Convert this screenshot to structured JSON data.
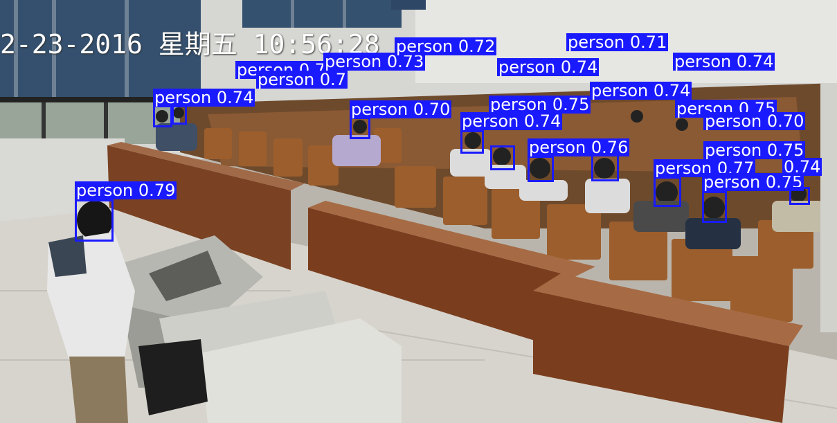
{
  "overlay": {
    "timestamp": "2-23-2016 星期五 10:56:28",
    "box_color": "#1a1aff",
    "label_text_color": "#ffffff"
  },
  "detections": [
    {
      "label": "person",
      "score": "0.79"
    },
    {
      "label": "person",
      "score": "0.74"
    },
    {
      "label": "person",
      "score": "0.72"
    },
    {
      "label": "person",
      "score": "0.73"
    },
    {
      "label": "person",
      "score": "0.7"
    },
    {
      "label": "person",
      "score": "0.70"
    },
    {
      "label": "person",
      "score": "0.72"
    },
    {
      "label": "person",
      "score": "0.74"
    },
    {
      "label": "person",
      "score": "0.71"
    },
    {
      "label": "person",
      "score": "0.74"
    },
    {
      "label": "person",
      "score": "0.75"
    },
    {
      "label": "person",
      "score": "0.74"
    },
    {
      "label": "person",
      "score": "0.76"
    },
    {
      "label": "person",
      "score": "0.74"
    },
    {
      "label": "person",
      "score": "0.75"
    },
    {
      "label": "person",
      "score": "0.70"
    },
    {
      "label": "person",
      "score": "0.75"
    },
    {
      "label": "person",
      "score": "0.77"
    },
    {
      "label": "person",
      "score": "0.75"
    },
    {
      "label": "person",
      "score": "0.74"
    }
  ]
}
